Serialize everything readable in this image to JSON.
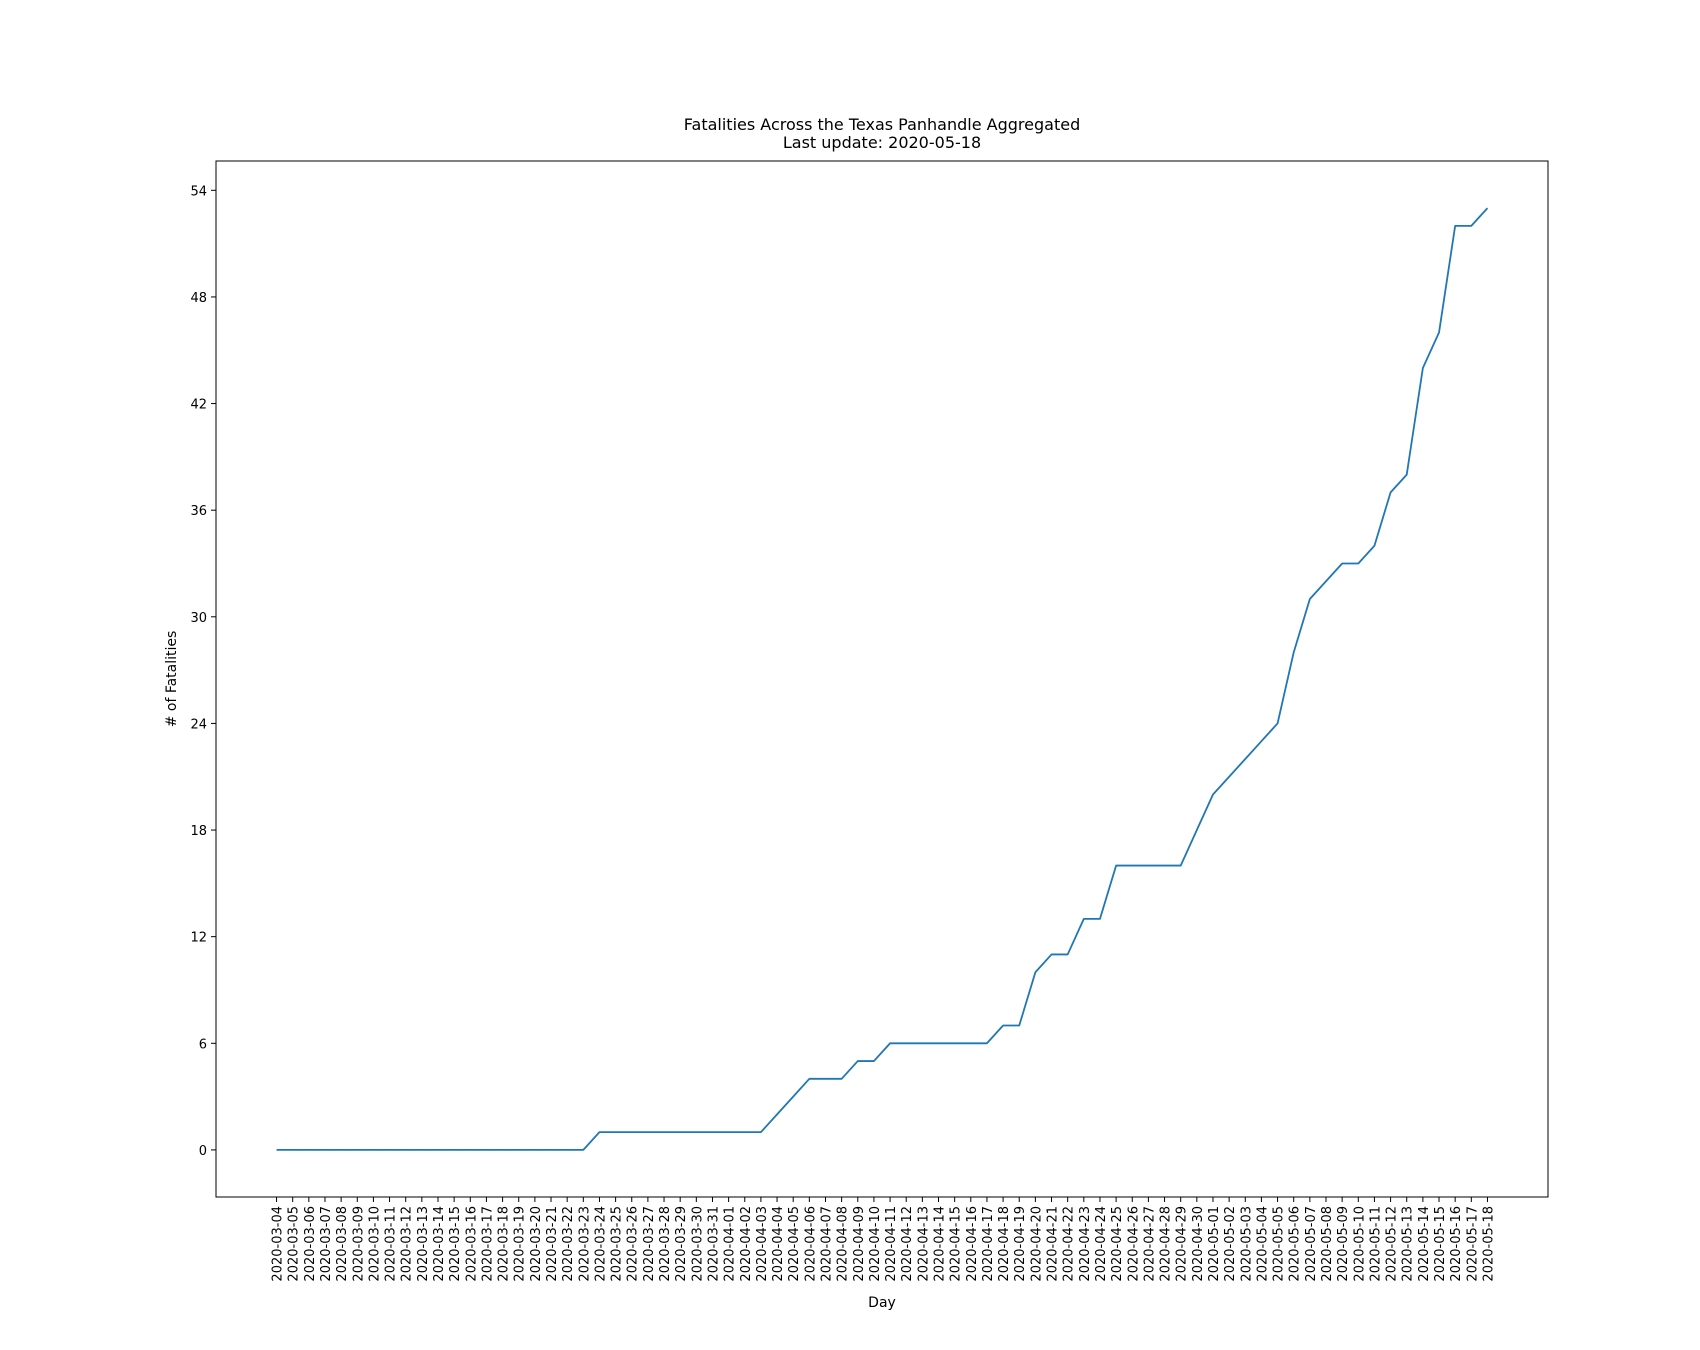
{
  "chart_data": {
    "type": "line",
    "title": "Fatalities Across the Texas Panhandle Aggregated",
    "subtitle": "Last update: 2020-05-18",
    "x_label": "Day",
    "y_label": "# of Fatalities",
    "categories": [
      "2020-03-04",
      "2020-03-05",
      "2020-03-06",
      "2020-03-07",
      "2020-03-08",
      "2020-03-09",
      "2020-03-10",
      "2020-03-11",
      "2020-03-12",
      "2020-03-13",
      "2020-03-14",
      "2020-03-15",
      "2020-03-16",
      "2020-03-17",
      "2020-03-18",
      "2020-03-19",
      "2020-03-20",
      "2020-03-21",
      "2020-03-22",
      "2020-03-23",
      "2020-03-24",
      "2020-03-25",
      "2020-03-26",
      "2020-03-27",
      "2020-03-28",
      "2020-03-29",
      "2020-03-30",
      "2020-03-31",
      "2020-04-01",
      "2020-04-02",
      "2020-04-03",
      "2020-04-04",
      "2020-04-05",
      "2020-04-06",
      "2020-04-07",
      "2020-04-08",
      "2020-04-09",
      "2020-04-10",
      "2020-04-11",
      "2020-04-12",
      "2020-04-13",
      "2020-04-14",
      "2020-04-15",
      "2020-04-16",
      "2020-04-17",
      "2020-04-18",
      "2020-04-19",
      "2020-04-20",
      "2020-04-21",
      "2020-04-22",
      "2020-04-23",
      "2020-04-24",
      "2020-04-25",
      "2020-04-26",
      "2020-04-27",
      "2020-04-28",
      "2020-04-29",
      "2020-04-30",
      "2020-05-01",
      "2020-05-02",
      "2020-05-03",
      "2020-05-04",
      "2020-05-05",
      "2020-05-06",
      "2020-05-07",
      "2020-05-08",
      "2020-05-09",
      "2020-05-10",
      "2020-05-11",
      "2020-05-12",
      "2020-05-13",
      "2020-05-14",
      "2020-05-15",
      "2020-05-16",
      "2020-05-17",
      "2020-05-18"
    ],
    "series": [
      {
        "color": "#1f77b4",
        "values": [
          0,
          0,
          0,
          0,
          0,
          0,
          0,
          0,
          0,
          0,
          0,
          0,
          0,
          0,
          0,
          0,
          0,
          0,
          0,
          0,
          1,
          1,
          1,
          1,
          1,
          1,
          1,
          1,
          1,
          1,
          1,
          2,
          3,
          4,
          4,
          4,
          5,
          5,
          6,
          6,
          6,
          6,
          6,
          6,
          6,
          7,
          7,
          10,
          11,
          11,
          13,
          13,
          16,
          16,
          16,
          16,
          16,
          18,
          20,
          21,
          22,
          23,
          24,
          28,
          31,
          32,
          33,
          33,
          34,
          37,
          38,
          44,
          46,
          52,
          52,
          53
        ]
      }
    ],
    "ylim": [
      -2.65,
      55.65
    ],
    "yticks": [
      0,
      6,
      12,
      18,
      24,
      30,
      36,
      42,
      48,
      54
    ]
  }
}
